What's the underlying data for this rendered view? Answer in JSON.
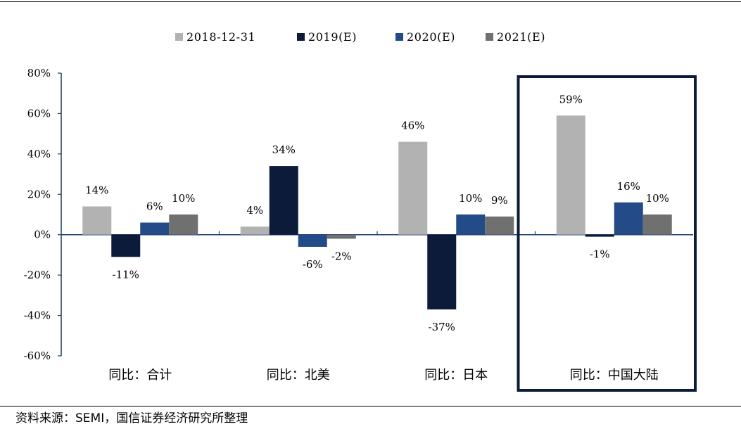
{
  "source_note": "资料来源：SEMI，国信证券经济研究所整理",
  "chart_data": {
    "type": "bar",
    "categories": [
      "同比：合计",
      "同比：北美",
      "同比：日本",
      "同比：中国大陆"
    ],
    "series": [
      {
        "name": "2018-12-31",
        "color": "#b2b2b2",
        "values": [
          14,
          4,
          46,
          59
        ]
      },
      {
        "name": "2019(E)",
        "color": "#0d1b3a",
        "values": [
          -11,
          34,
          -37,
          -1
        ]
      },
      {
        "name": "2020(E)",
        "color": "#234b87",
        "values": [
          6,
          -6,
          10,
          16
        ]
      },
      {
        "name": "2021(E)",
        "color": "#707070",
        "values": [
          10,
          -2,
          9,
          10
        ]
      }
    ],
    "data_labels": [
      [
        "14%",
        "4%",
        "46%",
        "59%"
      ],
      [
        "-11%",
        "34%",
        "-37%",
        "-1%"
      ],
      [
        "6%",
        "-6%",
        "10%",
        "16%"
      ],
      [
        "10%",
        "-2%",
        "9%",
        "10%"
      ]
    ],
    "y_ticks": [
      80,
      60,
      40,
      20,
      0,
      -20,
      -40,
      -60
    ],
    "y_tick_labels": [
      "80%",
      "60%",
      "40%",
      "20%",
      "0%",
      "-20%",
      "-40%",
      "-60%"
    ],
    "ylim": [
      -60,
      80
    ],
    "highlight_category": 3,
    "legend_position": "top",
    "grid": false
  }
}
